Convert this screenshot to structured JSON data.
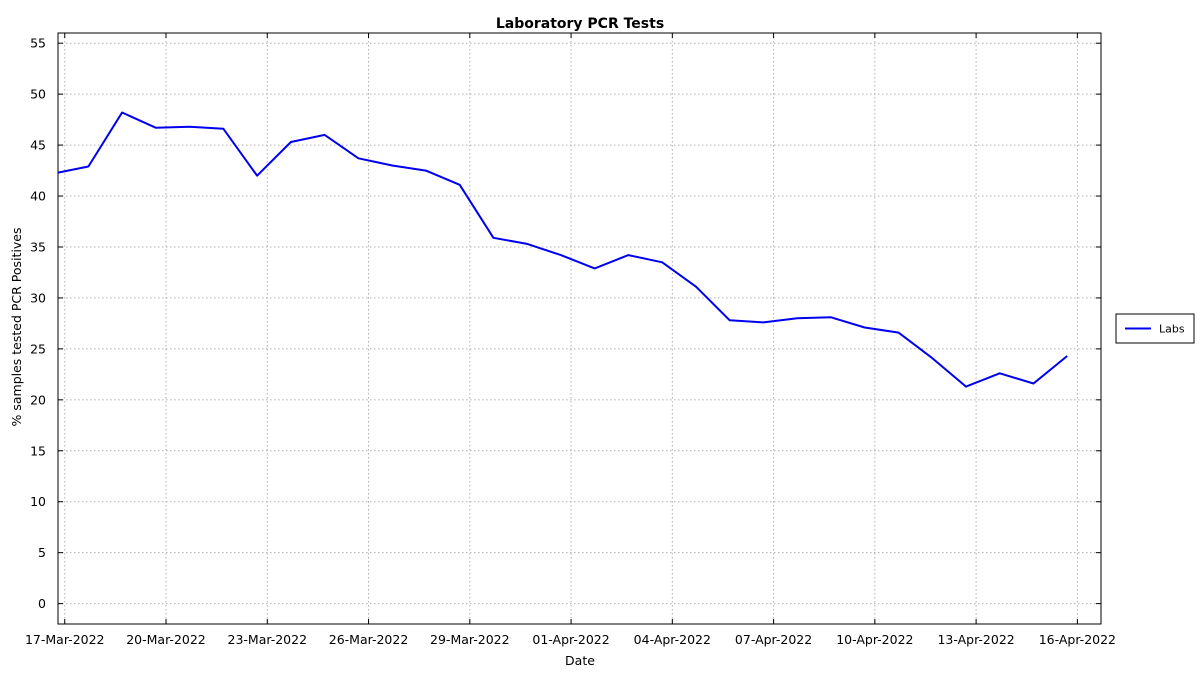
{
  "chart_data": {
    "type": "line",
    "title": "Laboratory PCR Tests",
    "xlabel": "Date",
    "ylabel": "% samples tested PCR Positives",
    "ylim": [
      -2,
      56
    ],
    "yticks": [
      0,
      5,
      10,
      15,
      20,
      25,
      30,
      35,
      40,
      45,
      50,
      55
    ],
    "xlim_days": [
      -0.2,
      30.7
    ],
    "xticks": [
      {
        "day": 0,
        "label": "17-Mar-2022"
      },
      {
        "day": 3,
        "label": "20-Mar-2022"
      },
      {
        "day": 6,
        "label": "23-Mar-2022"
      },
      {
        "day": 9,
        "label": "26-Mar-2022"
      },
      {
        "day": 12,
        "label": "29-Mar-2022"
      },
      {
        "day": 15,
        "label": "01-Apr-2022"
      },
      {
        "day": 18,
        "label": "04-Apr-2022"
      },
      {
        "day": 21,
        "label": "07-Apr-2022"
      },
      {
        "day": 24,
        "label": "10-Apr-2022"
      },
      {
        "day": 27,
        "label": "13-Apr-2022"
      },
      {
        "day": 30,
        "label": "16-Apr-2022"
      }
    ],
    "grid": true,
    "legend_position": "right",
    "series": [
      {
        "name": "Labs",
        "color": "#0000ee",
        "x_day": [
          -0.2,
          0.7,
          1.7,
          2.7,
          3.7,
          4.7,
          5.7,
          6.7,
          7.7,
          8.7,
          9.7,
          10.7,
          11.7,
          12.7,
          13.7,
          14.7,
          15.7,
          16.7,
          17.7,
          18.7,
          19.7,
          20.7,
          21.7,
          22.7,
          23.7,
          24.7,
          25.7,
          26.7,
          27.7,
          28.7,
          29.7
        ],
        "values": [
          42.3,
          42.9,
          48.2,
          46.7,
          46.8,
          46.6,
          42.0,
          45.3,
          46.0,
          43.7,
          43.0,
          42.5,
          41.1,
          35.9,
          35.3,
          34.2,
          32.9,
          34.2,
          33.5,
          31.1,
          27.8,
          27.6,
          28.0,
          28.1,
          27.1,
          26.6,
          24.1,
          21.3,
          22.6,
          21.6,
          24.3
        ]
      }
    ]
  }
}
